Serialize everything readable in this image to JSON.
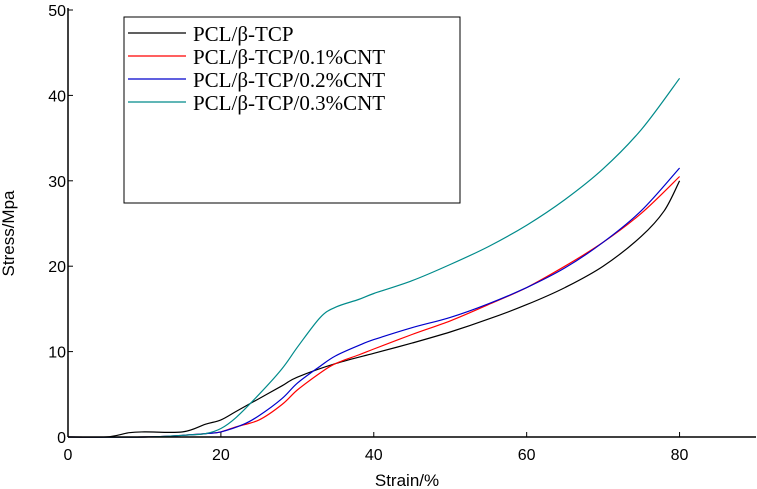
{
  "chart_data": {
    "type": "line",
    "title": "",
    "xlabel": "Strain/%",
    "ylabel": "Stress/Mpa",
    "xlim": [
      0,
      90
    ],
    "ylim": [
      0,
      50
    ],
    "x_ticks": [
      "0",
      "20",
      "40",
      "60",
      "80"
    ],
    "y_ticks": [
      "0",
      "10",
      "20",
      "30",
      "40",
      "50"
    ],
    "grid": false,
    "legend_position": "top-left",
    "series": [
      {
        "name": "PCL/β-TCP",
        "color": "#000000",
        "x": [
          0,
          5,
          8,
          10,
          15,
          18,
          20,
          22,
          25,
          28,
          30,
          35,
          40,
          45,
          50,
          55,
          60,
          65,
          70,
          75,
          78,
          80
        ],
        "y": [
          0,
          0,
          0.5,
          0.6,
          0.6,
          1.5,
          2.0,
          3.0,
          4.5,
          6.0,
          7.0,
          8.6,
          9.8,
          11.0,
          12.3,
          13.8,
          15.5,
          17.5,
          20.0,
          23.5,
          26.5,
          30.0
        ]
      },
      {
        "name": "PCL/β-TCP/0.1%CNT",
        "color": "#ff0000",
        "x": [
          0,
          10,
          15,
          18,
          20,
          22,
          25,
          28,
          30,
          33,
          35,
          38,
          40,
          45,
          50,
          55,
          60,
          65,
          70,
          75,
          80
        ],
        "y": [
          0,
          0,
          0.2,
          0.4,
          0.6,
          1.2,
          2.0,
          3.8,
          5.5,
          7.5,
          8.6,
          9.6,
          10.3,
          12.0,
          13.6,
          15.5,
          17.5,
          20.0,
          22.8,
          26.2,
          30.5
        ]
      },
      {
        "name": "PCL/β-TCP/0.2%CNT",
        "color": "#0000cc",
        "x": [
          0,
          10,
          15,
          18,
          20,
          23,
          25,
          28,
          30,
          33,
          35,
          38,
          40,
          45,
          50,
          55,
          60,
          65,
          70,
          75,
          80
        ],
        "y": [
          0,
          0,
          0.2,
          0.4,
          0.6,
          1.5,
          2.5,
          4.5,
          6.3,
          8.3,
          9.5,
          10.7,
          11.4,
          12.8,
          14.0,
          15.6,
          17.5,
          19.8,
          22.8,
          26.5,
          31.5
        ]
      },
      {
        "name": "PCL/β-TCP/0.3%CNT",
        "color": "#008b8b",
        "x": [
          0,
          10,
          15,
          18,
          20,
          22,
          25,
          28,
          30,
          33,
          35,
          38,
          40,
          45,
          50,
          55,
          60,
          65,
          70,
          75,
          80
        ],
        "y": [
          0,
          0,
          0.2,
          0.4,
          1.0,
          2.3,
          5.0,
          8.0,
          10.5,
          14.0,
          15.2,
          16.1,
          16.8,
          18.3,
          20.2,
          22.3,
          24.8,
          27.8,
          31.4,
          36.0,
          42.0
        ]
      }
    ]
  }
}
